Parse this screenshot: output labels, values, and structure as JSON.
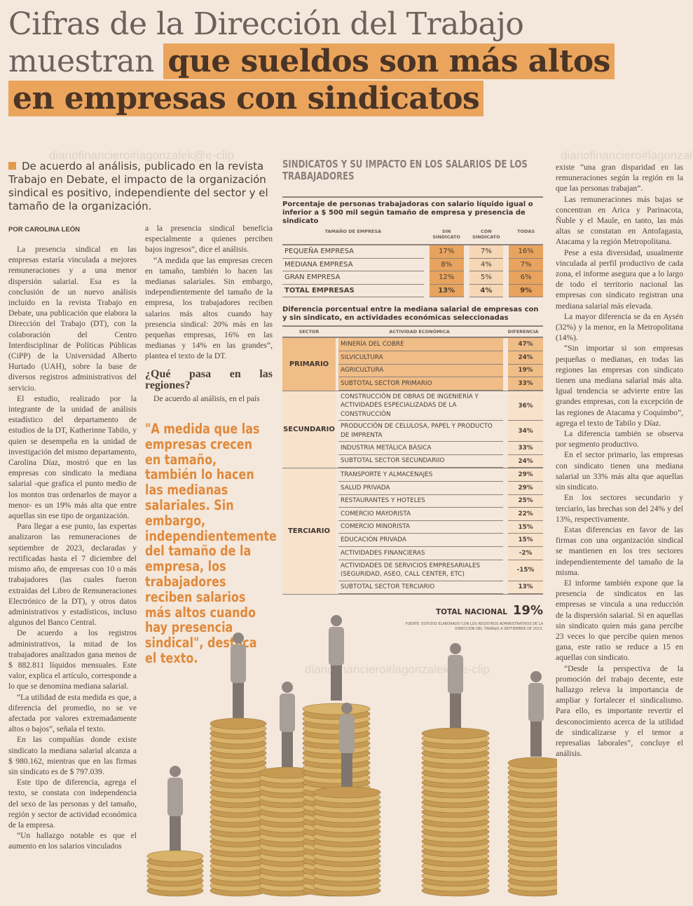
{
  "headline": {
    "line1": "Cifras de la Dirección del Trabajo",
    "line2_plain": "muestran ",
    "line2_highlight": "que sueldos son más altos",
    "line3_highlight": "en empresas con sindicatos"
  },
  "watermark": "diariofinanciero#lagonzalek@e-clip",
  "lead": "De acuerdo al análisis, publicado en la revista Trabajo en Debate, el impacto de la organización sindical es positivo, independiente del sector y el tamaño de la organización.",
  "byline": "POR CAROLINA LEÓN",
  "col1": [
    "La presencia sindical en las empresas estaría vinculada a mejores remuneraciones y a una menor dispersión salarial. Esa es la conclusión de un nuevo análisis incluido en la revista Trabajo en Debate, una publicación que elabora la Dirección del Trabajo (DT), con la colaboración del Centro Interdisciplinar de Políticas Públicas (CiPP) de la Universidad Alberto Hurtado (UAH), sobre la base de diversos registros administrativos del servicio.",
    "El estudio, realizado por la integrante de la unidad de análisis estadístico del departamento de estudios de la DT, Katherinne Tabilo, y quien se desempeña en la unidad de investigación del mismo departamento, Carolina Díaz, mostró que en las empresas con sindicato la mediana salarial -que grafica el punto medio de los montos tras ordenarlos de mayor a menor- es un 19% más alta que entre aquellas sin ese tipo de organización.",
    "Para llegar a ese punto, las expertas analizaron las remuneraciones de septiembre de 2023, declaradas y rectificadas hasta el 7 diciembre del mismo año, de empresas con 10 o más trabajadores (las cuales fueron extraídas del Libro de Remuneraciones Electrónico de la DT), y otros datos administrativos y estadísticos, incluso algunos del Banco Central.",
    "De acuerdo a los registros administrativos, la mitad de los trabajadores analizados gana menos de $ 882.811 líquidos mensuales. Este valor, explica el artículo, corresponde a lo que se denomina mediana salarial.",
    "“La utilidad de esta medida es que, a diferencia del promedio, no se ve afectada por valores extremadamente altos o bajos”, señala el texto.",
    "En las compañías donde existe sindicato la mediana salarial alcanza a $ 980.162, mientras que en las firmas sin sindicato es de $ 797.039.",
    "Este tipo de diferencia, agrega el texto, se constata con independencia del sexo de las personas y del tamaño, región y sector de actividad económica de la empresa.",
    "“Un hallazgo notable es que el aumento en los salarios vinculados"
  ],
  "col2": {
    "paragraphs": [
      "a la presencia sindical beneficia especialmente a quienes perciben bajos ingresos”, dice el análisis.",
      "“A medida que las empresas crecen en tamaño, también lo hacen las medianas salariales. Sin embargo, independientemente del tamaño de la empresa, los trabajadores reciben salarios más altos cuando hay presencia sindical: 20% más en las pequeñas empresas, 16% en las medianas y 14% en las grandes”, plantea el texto de la DT."
    ],
    "subhead": "¿Qué pasa en las regiones?",
    "after": "De acuerdo al análisis, en el país"
  },
  "pullquote": "\"A medida que las empresas crecen en tamaño, también lo hacen las medianas salariales. Sin embargo, independientemente del tamaño de la empresa, los trabajadores reciben salarios más altos cuando hay presencia sindical\", destaca el texto.",
  "col3": [
    "existe “una gran disparidad en las remuneraciones según la región en la que las personas trabajan”.",
    "Las remuneraciones más bajas se concentran en Arica y Parinacota, Ñuble y el Maule, en tanto, las más altas se constatan en Antofagasta, Atacama y la región Metropolitana.",
    "Pese a esta diversidad, usualmente vinculada al perfil productivo de cada zona, el informe asegura que a lo largo de todo el territorio nacional las empresas con sindicato registran una mediana salarial más elevada.",
    "La mayor diferencia se da en Aysén (32%) y la menor, en la Metropolitana (14%).",
    "“Sin importar si son empresas pequeñas o medianas, en todas las regiones las empresas con sindicato tienen una mediana salarial más alta. Igual tendencia se advierte entre las grandes empresas, con la excepción de las regiones de Atacama y Coquimbo”, agrega el texto de Tabilo y Díaz.",
    "La diferencia también se observa por segmento productivo.",
    "En el sector primario, las empresas con sindicato tienen una mediana salarial un 33% más alta que aquellas sin sindicato.",
    "En los sectores secundario y terciario, las brechas son del 24% y del 13%, respectivamente.",
    "Estas diferencias en favor de las firmas con una organización sindical se mantienen en los tres sectores independientemente del tamaño de la misma.",
    "El informe también expone que la presencia de sindicatos en las empresas se vincula a una reducción de la dispersión salarial. Si en aquellas sin sindicato quien más gana percibe 23 veces lo que percibe quien menos gana, este ratio se reduce a 15 en aquellas con sindicato.",
    "“Desde la perspectiva de la promoción del trabajo decente, este hallazgo releva la importancia de ampliar y fortalecer el sindicalismo. Para ello, es importante revertir el desconocimiento acerca de la utilidad de sindicalizarse y el temor a represalias laborales”, concluye el análisis."
  ],
  "infographic": {
    "title": "SINDICATOS Y SU IMPACTO EN LOS SALARIOS DE LOS TRABAJADORES",
    "table1": {
      "subtitle": "Porcentaje de personas trabajadoras con salario líquido igual o inferior a $ 500 mil según tamaño de empresa y presencia de sindicato",
      "headers": [
        "TAMAÑO DE EMPRESA",
        "SIN SINDICATO",
        "CON SINDICATO",
        "TODAS"
      ],
      "rows": [
        {
          "label": "PEQUEÑA EMPRESA",
          "sin": "17%",
          "con": "7%",
          "todas": "16%"
        },
        {
          "label": "MEDIANA EMPRESA",
          "sin": "8%",
          "con": "4%",
          "todas": "7%"
        },
        {
          "label": "GRAN EMPRESA",
          "sin": "12%",
          "con": "5%",
          "todas": "6%"
        },
        {
          "label": "TOTAL EMPRESAS",
          "sin": "13%",
          "con": "4%",
          "todas": "9%"
        }
      ]
    },
    "table2": {
      "subtitle": "Diferencia porcentual entre la mediana salarial de empresas con y sin sindicato, en actividades económicas seleccionadas",
      "headers": [
        "SECTOR",
        "ACTIVIDAD ECONÓMICA",
        "DIFERENCIA"
      ],
      "groups": [
        {
          "sector": "PRIMARIO",
          "rows": [
            {
              "act": "MINERÍA DEL COBRE",
              "dif": "47%"
            },
            {
              "act": "SILVICULTURA",
              "dif": "24%"
            },
            {
              "act": "AGRICULTURA",
              "dif": "19%"
            },
            {
              "act": "SUBTOTAL SECTOR PRIMARIO",
              "dif": "33%"
            }
          ]
        },
        {
          "sector": "SECUNDARIO",
          "rows": [
            {
              "act": "CONSTRUCCIÓN DE OBRAS DE INGENIERÍA Y ACTIVIDADES ESPECIALIZADAS DE LA CONSTRUCCIÓN",
              "dif": "36%"
            },
            {
              "act": "PRODUCCIÓN DE CELULOSA, PAPEL Y PRODUCTO DE IMPRENTA",
              "dif": "34%"
            },
            {
              "act": "INDUSTRIA METÁLICA BÁSICA",
              "dif": "33%"
            },
            {
              "act": "SUBTOTAL SECTOR SECUNDARIIO",
              "dif": "24%"
            }
          ]
        },
        {
          "sector": "TERCIARIO",
          "rows": [
            {
              "act": "TRANSPORTE Y ALMACENAJES",
              "dif": "29%"
            },
            {
              "act": "SALUD PRIVADA",
              "dif": "29%"
            },
            {
              "act": "RESTAURANTES Y HOTELES",
              "dif": "25%"
            },
            {
              "act": "COMERCIO MAYORISTA",
              "dif": "22%"
            },
            {
              "act": "COMERCIO MINORISTA",
              "dif": "15%"
            },
            {
              "act": "EDUCACIÓN PRIVADA",
              "dif": "15%"
            },
            {
              "act": "ACTIVIDADES FINANCIERAS",
              "dif": "-2%"
            },
            {
              "act": "ACTIVIDADES DE SERVICIOS EMPRESARIALES (SEGURIDAD, ASEO, CALL CENTER, ETC)",
              "dif": "-15%"
            },
            {
              "act": "SUBTOTAL SECTOR TERCIARIO",
              "dif": "13%"
            }
          ]
        }
      ]
    },
    "total_label": "TOTAL NACIONAL",
    "total_value": "19%",
    "source": "FUENTE: ESTUDIO ELABORADO CON LOS REGISTROS ADMINISTRATIVOS DE LA DIRECCIÓN DEL TRABAJO A SEPTIEMBRE DE 2023."
  },
  "colors": {
    "accent": "#eaa45c",
    "pull": "#e0893a",
    "bg": "#f4e7db",
    "coin": "#d9b36a"
  }
}
